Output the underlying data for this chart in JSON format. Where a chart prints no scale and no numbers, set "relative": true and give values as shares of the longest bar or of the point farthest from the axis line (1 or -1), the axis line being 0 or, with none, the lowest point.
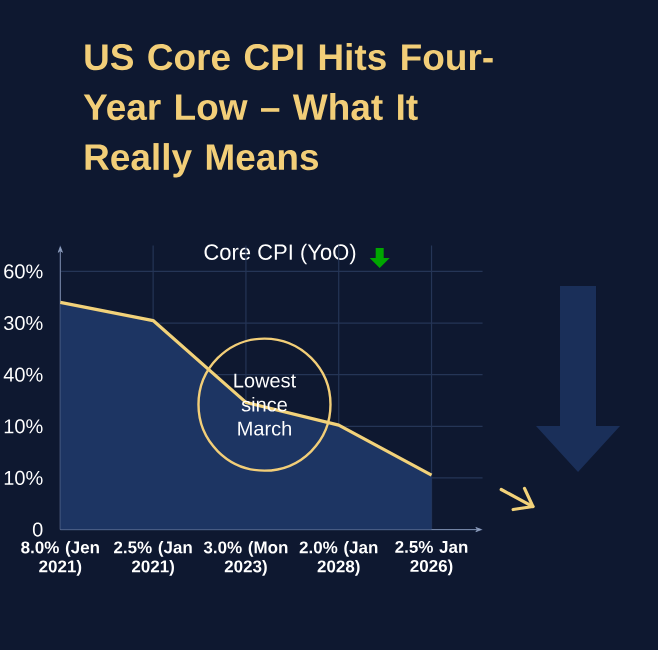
{
  "chart_data": {
    "type": "area",
    "title": "US Core CPI Hits Four-Year Low – What It Really Means",
    "subtitle": "Core CPI (YoO)",
    "categories": [
      "8.0% (Jen 2021)",
      "2.5% (Jan 2021)",
      "3.0% (Mon 2023)",
      "2.0% (Jan 2028)",
      "2.5% Jan 2026)"
    ],
    "series": [
      {
        "color": "#1d3563",
        "values": [
          1.0,
          0.92,
          0.56,
          0.46,
          0.24
        ]
      },
      {
        "type": "line",
        "color": "#f2d27a",
        "values": [
          1.0,
          0.92,
          0.56,
          0.46,
          0.24
        ]
      }
    ],
    "relative": true,
    "annotations": [
      "Lowest since March",
      "0",
      "10%",
      "10%",
      "40%",
      "30%",
      "60%"
    ],
    "grid": true
  }
}
